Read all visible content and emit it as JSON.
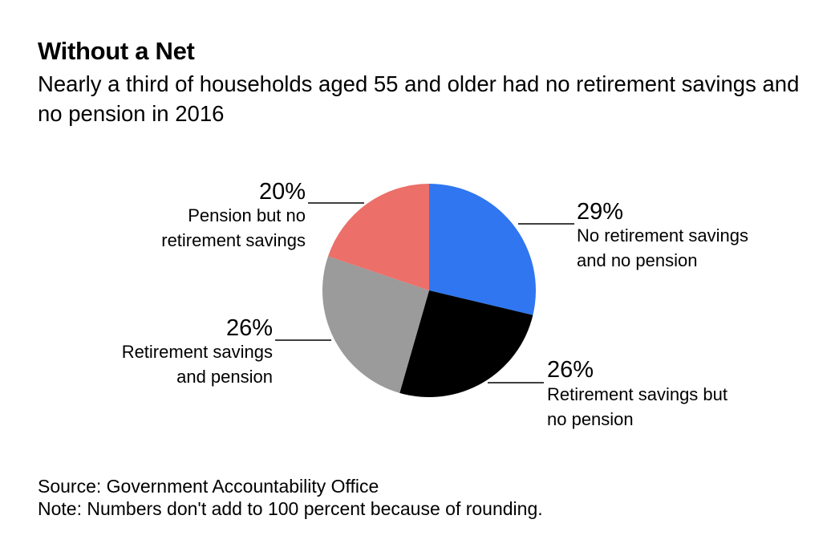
{
  "header": {
    "title": "Without a Net",
    "subtitle": "Nearly a third of households aged 55 and older had no retirement savings and no pension in 2016"
  },
  "footer": {
    "source": "Source: Government Accountability Office",
    "note": "Note: Numbers don't add to 100 percent because of rounding."
  },
  "chart_data": {
    "type": "pie",
    "title": "Without a Net",
    "subtitle": "Nearly a third of households aged 55 and older had no retirement savings and no pension in 2016",
    "start_angle": "12 o'clock",
    "direction": "clockwise",
    "legend": "none",
    "slices": [
      {
        "value": 29,
        "pct_label": "29%",
        "label_lines": [
          "No retirement savings",
          "and no pension"
        ],
        "color": "#2f76f0",
        "label_side": "right"
      },
      {
        "value": 26,
        "pct_label": "26%",
        "label_lines": [
          "Retirement savings but",
          "no pension"
        ],
        "color": "#000000",
        "label_side": "right"
      },
      {
        "value": 26,
        "pct_label": "26%",
        "label_lines": [
          "Retirement savings",
          "and pension"
        ],
        "color": "#9b9b9b",
        "label_side": "left"
      },
      {
        "value": 20,
        "pct_label": "20%",
        "label_lines": [
          "Pension but no",
          "retirement savings"
        ],
        "color": "#ec6f69",
        "label_side": "left"
      }
    ]
  }
}
